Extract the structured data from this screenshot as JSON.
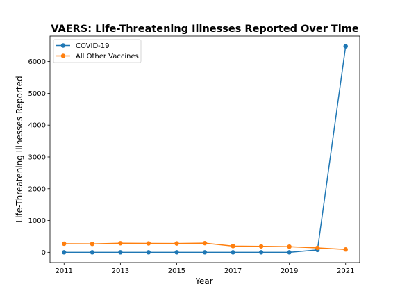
{
  "chart_data": {
    "type": "line",
    "title": "VAERS: Life-Threatening Illnesses Reported Over Time",
    "xlabel": "Year",
    "ylabel": "Life-Threatening Illnesses Reported",
    "x": [
      2011,
      2012,
      2013,
      2014,
      2015,
      2016,
      2017,
      2018,
      2019,
      2020,
      2021
    ],
    "xticks": [
      "2011",
      "2013",
      "2015",
      "2017",
      "2019",
      "2021"
    ],
    "yticks": [
      "0",
      "1000",
      "2000",
      "3000",
      "4000",
      "5000",
      "6000"
    ],
    "xlim": [
      2010.5,
      2021.5
    ],
    "ylim": [
      -320,
      6800
    ],
    "grid": false,
    "legend_position": "top-left",
    "series": [
      {
        "name": "COVID-19",
        "color": "#1f77b4",
        "values": [
          0,
          0,
          0,
          0,
          0,
          0,
          0,
          0,
          0,
          75,
          6480
        ]
      },
      {
        "name": "All Other Vaccines",
        "color": "#ff7f0e",
        "values": [
          270,
          265,
          285,
          280,
          278,
          288,
          195,
          188,
          178,
          140,
          90
        ]
      }
    ]
  }
}
